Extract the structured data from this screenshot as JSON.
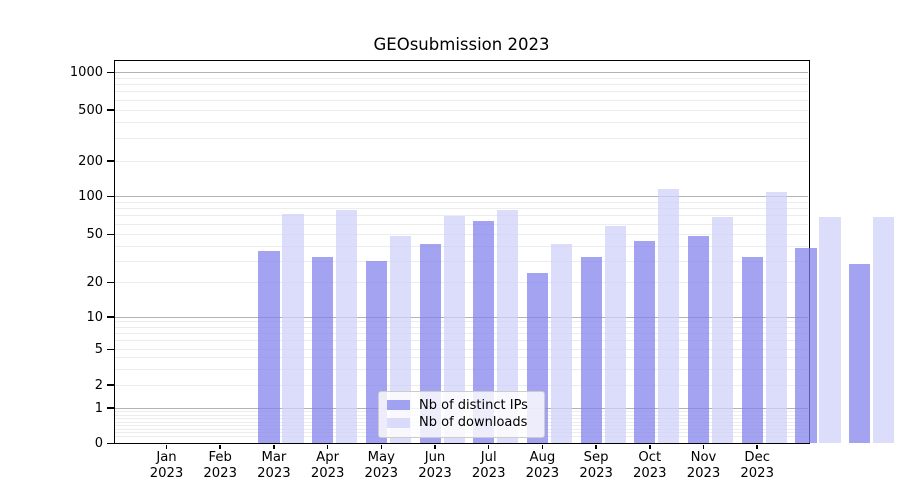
{
  "title": "GEOsubmission 2023",
  "chart_data": {
    "type": "bar",
    "title": "GEOsubmission 2023",
    "categories": [
      "Jan 2023",
      "Feb 2023",
      "Mar 2023",
      "Apr 2023",
      "May 2023",
      "Jun 2023",
      "Jul 2023",
      "Aug 2023",
      "Sep 2023",
      "Oct 2023",
      "Nov 2023",
      "Dec 2023"
    ],
    "month_labels": [
      "Jan",
      "Feb",
      "Mar",
      "Apr",
      "May",
      "Jun",
      "Jul",
      "Aug",
      "Sep",
      "Oct",
      "Nov",
      "Dec"
    ],
    "year_label": "2023",
    "series": [
      {
        "name": "Nb of distinct IPs",
        "color": "#8080eb",
        "opacity": 0.72,
        "values": [
          36,
          32,
          30,
          41,
          63,
          24,
          32,
          44,
          48,
          32,
          38,
          28
        ]
      },
      {
        "name": "Nb of downloads",
        "color": "#cfcffa",
        "opacity": 0.72,
        "values": [
          72,
          77,
          48,
          69,
          77,
          41,
          58,
          115,
          68,
          108,
          68,
          68
        ]
      }
    ],
    "xlabel": "",
    "ylabel": "",
    "y_ticks": [
      0,
      1,
      2,
      5,
      10,
      20,
      50,
      100,
      200,
      500,
      1000
    ],
    "y_scale": "symlog",
    "ylim": [
      0,
      1200
    ],
    "grid": true,
    "legend_position": "lower center",
    "grid_major_color": "#b3b3b3",
    "grid_minor_color": "#ececec"
  },
  "legend": {
    "items": [
      {
        "label": "Nb of distinct IPs"
      },
      {
        "label": "Nb of downloads"
      }
    ]
  }
}
